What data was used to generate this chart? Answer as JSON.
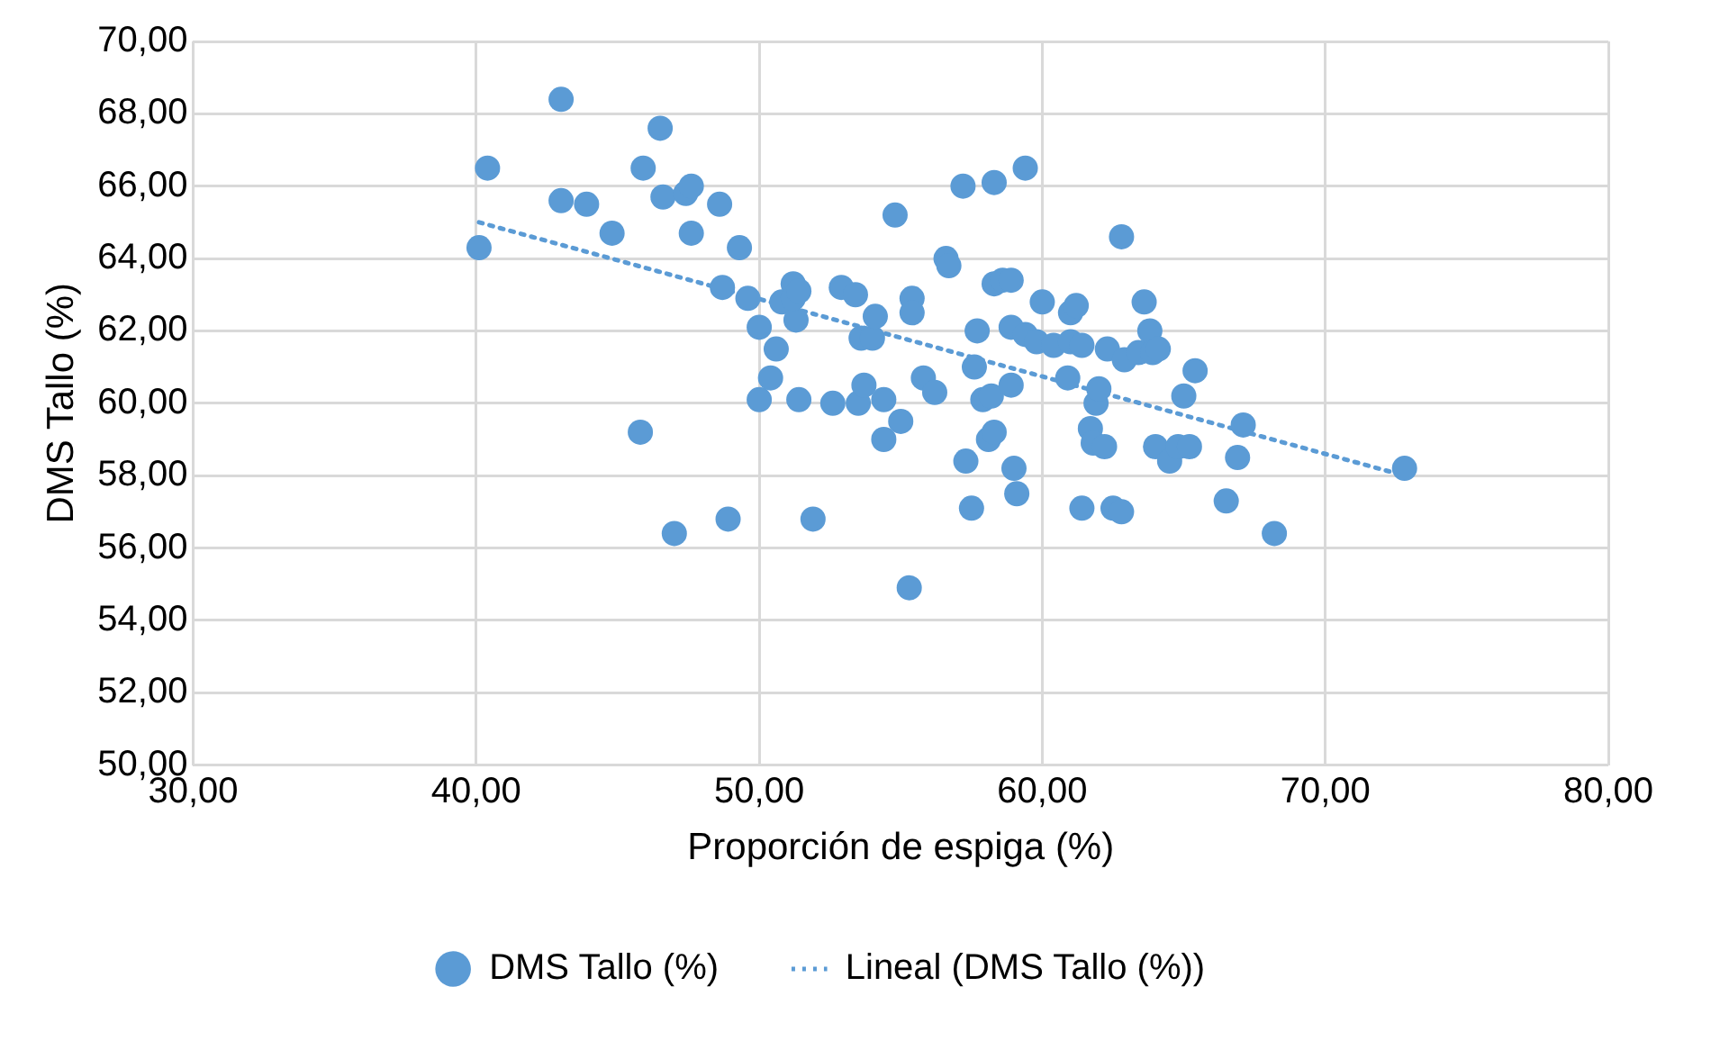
{
  "chart_data": {
    "type": "scatter",
    "xlabel": "Proporción de espiga (%)",
    "ylabel": "DMS Tallo (%)",
    "xlim": [
      30,
      80
    ],
    "xticks": [
      {
        "value": 30,
        "label": "30,00"
      },
      {
        "value": 40,
        "label": "40,00"
      },
      {
        "value": 50,
        "label": "50,00"
      },
      {
        "value": 60,
        "label": "60,00"
      },
      {
        "value": 70,
        "label": "70,00"
      },
      {
        "value": 80,
        "label": "80,00"
      }
    ],
    "ylim": [
      50,
      70
    ],
    "yticks": [
      {
        "value": 50,
        "label": "50,00"
      },
      {
        "value": 52,
        "label": "52,00"
      },
      {
        "value": 54,
        "label": "54,00"
      },
      {
        "value": 56,
        "label": "56,00"
      },
      {
        "value": 58,
        "label": "58,00"
      },
      {
        "value": 60,
        "label": "60,00"
      },
      {
        "value": 62,
        "label": "62,00"
      },
      {
        "value": 64,
        "label": "64,00"
      },
      {
        "value": 66,
        "label": "66,00"
      },
      {
        "value": 68,
        "label": "68,00"
      },
      {
        "value": 70,
        "label": "70,00"
      }
    ],
    "grid": true,
    "legend": "bottom",
    "series": [
      {
        "name": "DMS Tallo (%)",
        "color": "#5b9bd5",
        "marker": "circle",
        "x": [
          40.1,
          40.4,
          43.0,
          43.0,
          43.9,
          44.8,
          45.9,
          45.8,
          46.5,
          46.6,
          47.0,
          47.4,
          47.6,
          47.6,
          48.6,
          48.7,
          48.9,
          49.3,
          49.6,
          50.0,
          50.0,
          50.4,
          50.6,
          50.8,
          51.2,
          51.3,
          51.2,
          51.4,
          51.4,
          51.9,
          52.6,
          52.9,
          53.4,
          53.5,
          53.6,
          53.7,
          54.0,
          54.1,
          54.4,
          54.4,
          54.8,
          55.0,
          55.3,
          55.4,
          55.4,
          55.8,
          56.2,
          56.6,
          56.7,
          57.2,
          57.3,
          57.5,
          57.6,
          57.7,
          57.9,
          58.1,
          58.2,
          58.3,
          58.3,
          58.3,
          58.6,
          58.9,
          58.9,
          58.9,
          59.0,
          59.1,
          59.4,
          59.4,
          59.8,
          60.0,
          60.4,
          60.9,
          61.0,
          61.0,
          61.2,
          61.4,
          61.4,
          61.7,
          61.8,
          61.9,
          62.0,
          62.2,
          62.3,
          62.5,
          62.8,
          62.8,
          62.9,
          63.4,
          63.6,
          63.8,
          63.9,
          64.1,
          64.0,
          64.5,
          64.8,
          65.0,
          65.2,
          65.4,
          66.5,
          66.9,
          67.1,
          68.2,
          72.8
        ],
        "values": [
          64.3,
          66.5,
          68.4,
          65.6,
          65.5,
          64.7,
          66.5,
          59.2,
          67.6,
          65.7,
          56.4,
          65.8,
          66.0,
          64.7,
          65.5,
          63.2,
          56.8,
          64.3,
          62.9,
          62.1,
          60.1,
          60.7,
          61.5,
          62.8,
          63.3,
          62.3,
          62.9,
          63.1,
          60.1,
          56.8,
          60.0,
          63.2,
          63.0,
          60.0,
          61.8,
          60.5,
          61.8,
          62.4,
          60.1,
          59.0,
          65.2,
          59.5,
          54.9,
          62.9,
          62.5,
          60.7,
          60.3,
          64.0,
          63.8,
          66.0,
          58.4,
          57.1,
          61.0,
          62.0,
          60.1,
          59.0,
          60.2,
          59.2,
          66.1,
          63.3,
          63.4,
          63.4,
          62.1,
          60.5,
          58.2,
          57.5,
          66.5,
          61.9,
          61.7,
          62.8,
          61.6,
          60.7,
          61.7,
          62.5,
          62.7,
          61.6,
          57.1,
          59.3,
          58.9,
          60.0,
          60.4,
          58.8,
          61.5,
          57.1,
          57.0,
          64.6,
          61.2,
          61.4,
          62.8,
          62.0,
          61.4,
          61.5,
          58.8,
          58.4,
          58.8,
          60.2,
          58.8,
          60.9,
          57.3,
          58.5,
          59.4,
          56.4,
          58.2
        ]
      },
      {
        "name": "Lineal (DMS Tallo (%))",
        "type": "line",
        "color": "#5b9bd5",
        "marker": "none",
        "line_style": "dotted",
        "x": [
          40.1,
          72.8
        ],
        "values": [
          65.0,
          58.0
        ]
      }
    ]
  }
}
